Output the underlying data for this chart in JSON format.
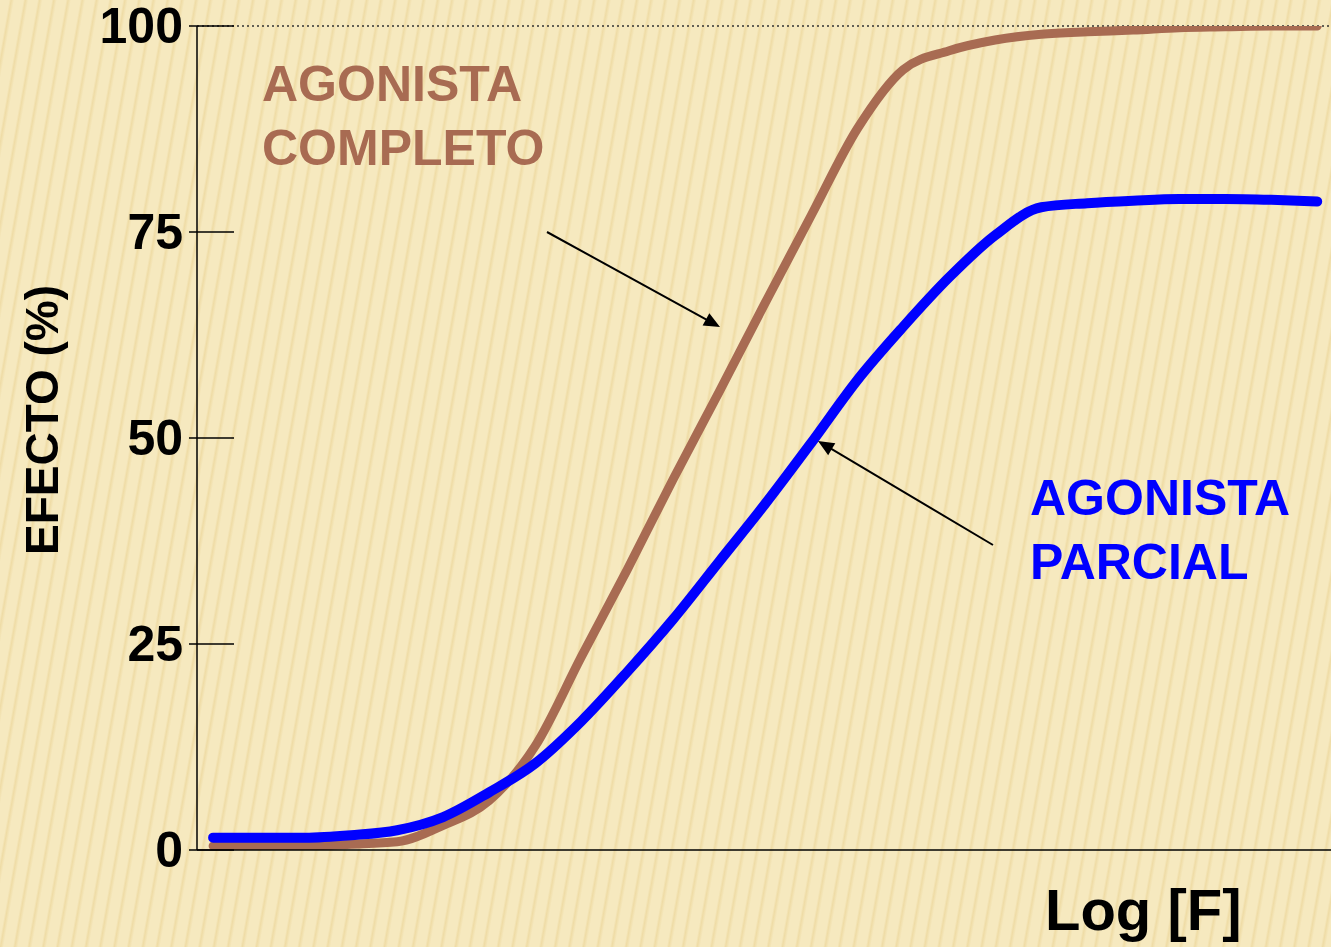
{
  "chart_data": {
    "type": "line",
    "xlabel": "Log [F]",
    "ylabel": "EFECTO (%)",
    "categories": [
      null,
      null,
      null,
      null,
      null,
      null,
      null,
      null,
      null,
      null,
      null,
      null,
      null,
      null,
      null,
      null,
      null,
      null,
      null,
      null,
      null,
      null,
      null,
      null,
      null
    ],
    "series": [
      {
        "name": "AGONISTA COMPLETO",
        "color": "#a86b52",
        "values": [
          0.5,
          0.5,
          0.5,
          0.7,
          1,
          3,
          6,
          12.6,
          23.4,
          34,
          45,
          55.6,
          66.4,
          77,
          87.5,
          94.7,
          97,
          98.3,
          99,
          99.3,
          99.5,
          99.8,
          99.9,
          100,
          100
        ]
      },
      {
        "name": "AGONISTA PARCIAL",
        "color": "#0000ff",
        "values": [
          1.5,
          1.5,
          1.5,
          1.8,
          2.4,
          4,
          7,
          10.5,
          15.6,
          21.6,
          28,
          35,
          42,
          49.4,
          57,
          63.5,
          69.5,
          74.6,
          78,
          78.5,
          78.8,
          79,
          79,
          78.9,
          78.7
        ]
      }
    ],
    "ylim": [
      0,
      100
    ],
    "yticks": [
      0,
      25,
      50,
      75,
      100
    ],
    "ref_lines": [
      {
        "axis": "y",
        "value": 100,
        "color": "#333333",
        "line_style": "dotted"
      }
    ],
    "tick_labels": "y",
    "grid": false,
    "legend": "right",
    "marker": "none",
    "line_style": "solid"
  }
}
